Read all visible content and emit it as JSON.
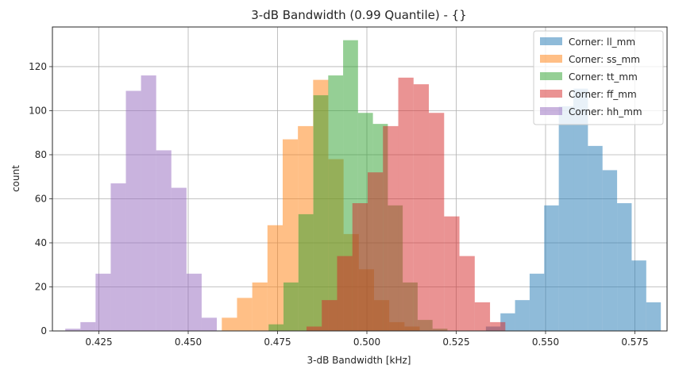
{
  "chart_data": {
    "type": "bar",
    "title": "3-dB Bandwidth (0.99 Quantile) - {}",
    "xlabel": "3-dB Bandwidth [kHz]",
    "ylabel": "count",
    "xlim": [
      0.412,
      0.584
    ],
    "ylim": [
      0,
      138
    ],
    "xticks": [
      0.425,
      0.45,
      0.475,
      0.5,
      0.525,
      0.55,
      0.575
    ],
    "xtick_labels": [
      "0.425",
      "0.450",
      "0.475",
      "0.500",
      "0.525",
      "0.550",
      "0.575"
    ],
    "yticks": [
      0,
      20,
      40,
      60,
      80,
      100,
      120
    ],
    "ytick_labels": [
      "0",
      "20",
      "40",
      "60",
      "80",
      "100",
      "120"
    ],
    "grid": true,
    "legend_position": "top-right",
    "alpha": 0.5,
    "series": [
      {
        "name": "Corner: ll_mm",
        "color": "#1f77b4",
        "bin_start": 0.5333,
        "bin_width": 0.00408,
        "counts": [
          2,
          8,
          14,
          26,
          57,
          102,
          110,
          84,
          73,
          58,
          32,
          13
        ]
      },
      {
        "name": "Corner: ss_mm",
        "color": "#ff7f0e",
        "bin_start": 0.4594,
        "bin_width": 0.00426,
        "counts": [
          6,
          15,
          22,
          48,
          87,
          93,
          114,
          78,
          44,
          28,
          14,
          4,
          2
        ]
      },
      {
        "name": "Corner: tt_mm",
        "color": "#2ca02c",
        "bin_start": 0.4725,
        "bin_width": 0.00417,
        "counts": [
          3,
          22,
          53,
          107,
          116,
          132,
          99,
          94,
          57,
          22,
          5,
          1
        ]
      },
      {
        "name": "Corner: ff_mm",
        "color": "#d62728",
        "bin_start": 0.4831,
        "bin_width": 0.00428,
        "counts": [
          2,
          14,
          34,
          58,
          72,
          93,
          115,
          112,
          99,
          52,
          34,
          13,
          4
        ]
      },
      {
        "name": "Corner: hh_mm",
        "color": "#9467bd",
        "bin_start": 0.4156,
        "bin_width": 0.00424,
        "counts": [
          1,
          4,
          26,
          67,
          109,
          116,
          82,
          65,
          26,
          6
        ]
      }
    ]
  }
}
